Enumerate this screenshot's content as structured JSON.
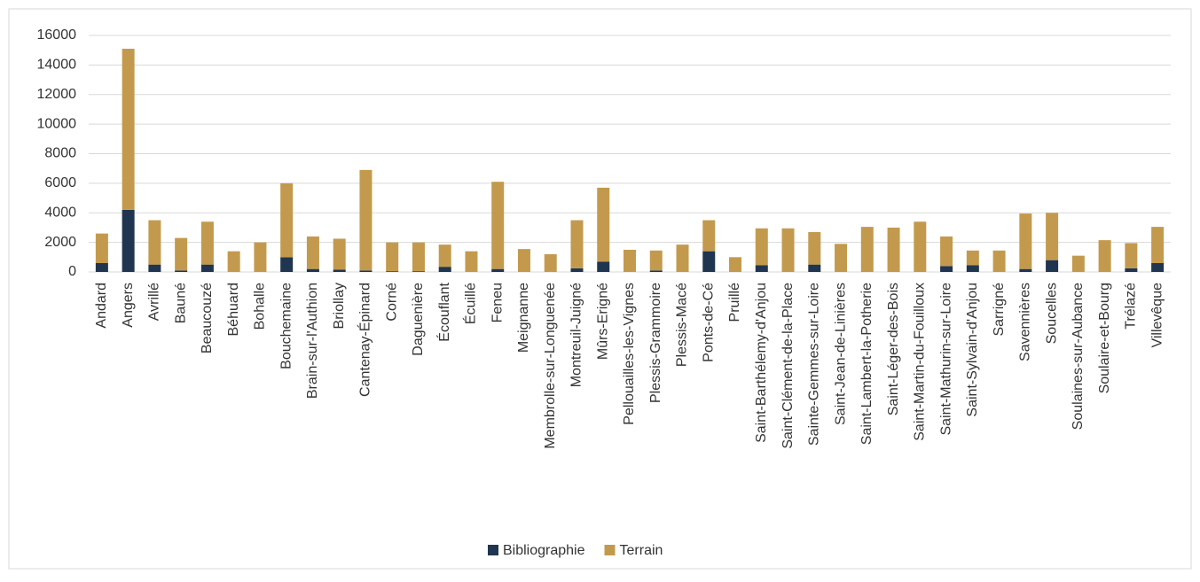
{
  "chart_data": {
    "type": "stacked_bar",
    "categories": [
      "Andard",
      "Angers",
      "Avrillé",
      "Bauné",
      "Beaucouzé",
      "Béhuard",
      "Bohalle",
      "Bouchemaine",
      "Brain-sur-l'Authion",
      "Briollay",
      "Cantenay-Épinard",
      "Corné",
      "Daguenière",
      "Écouflant",
      "Écuillé",
      "Feneu",
      "Meignanne",
      "Membrolle-sur-Longuenée",
      "Montreuil-Juigné",
      "Mûrs-Erigné",
      "Pellouailles-les-Vignes",
      "Plessis-Grammoire",
      "Plessis-Macé",
      "Ponts-de-Cé",
      "Pruillé",
      "Saint-Barthélemy-d'Anjou",
      "Saint-Clément-de-la-Place",
      "Sainte-Gemmes-sur-Loire",
      "Saint-Jean-de-Linières",
      "Saint-Lambert-la-Potherie",
      "Saint-Léger-des-Bois",
      "Saint-Martin-du-Fouilloux",
      "Saint-Mathurin-sur-Loire",
      "Saint-Sylvain-d'Anjou",
      "Sarrigné",
      "Savennières",
      "Soucelles",
      "Soulaines-sur-Aubance",
      "Soulaire-et-Bourg",
      "Trélazé",
      "Villevêque"
    ],
    "series": [
      {
        "name": "Bibliographie",
        "color": "#203550",
        "values": [
          600,
          4200,
          500,
          100,
          500,
          0,
          0,
          1000,
          200,
          150,
          100,
          50,
          50,
          350,
          0,
          200,
          0,
          0,
          250,
          700,
          0,
          100,
          0,
          1400,
          0,
          450,
          0,
          500,
          0,
          0,
          0,
          0,
          400,
          450,
          0,
          200,
          800,
          0,
          0,
          250,
          600
        ]
      },
      {
        "name": "Terrain",
        "color": "#c39a4d",
        "values": [
          2000,
          10900,
          3000,
          2200,
          2900,
          1400,
          2000,
          5000,
          2200,
          2100,
          6800,
          1950,
          1950,
          1500,
          1400,
          5900,
          1550,
          1200,
          3250,
          5000,
          1500,
          1350,
          1850,
          2100,
          1000,
          2500,
          2950,
          2200,
          1900,
          3050,
          3000,
          3400,
          2000,
          1000,
          1450,
          3750,
          3200,
          1100,
          2150,
          1700,
          2450
        ]
      }
    ],
    "ylim": [
      0,
      16000
    ],
    "yticks": [
      0,
      2000,
      4000,
      6000,
      8000,
      10000,
      12000,
      14000,
      16000
    ],
    "grid": true,
    "legend": "bottom"
  }
}
